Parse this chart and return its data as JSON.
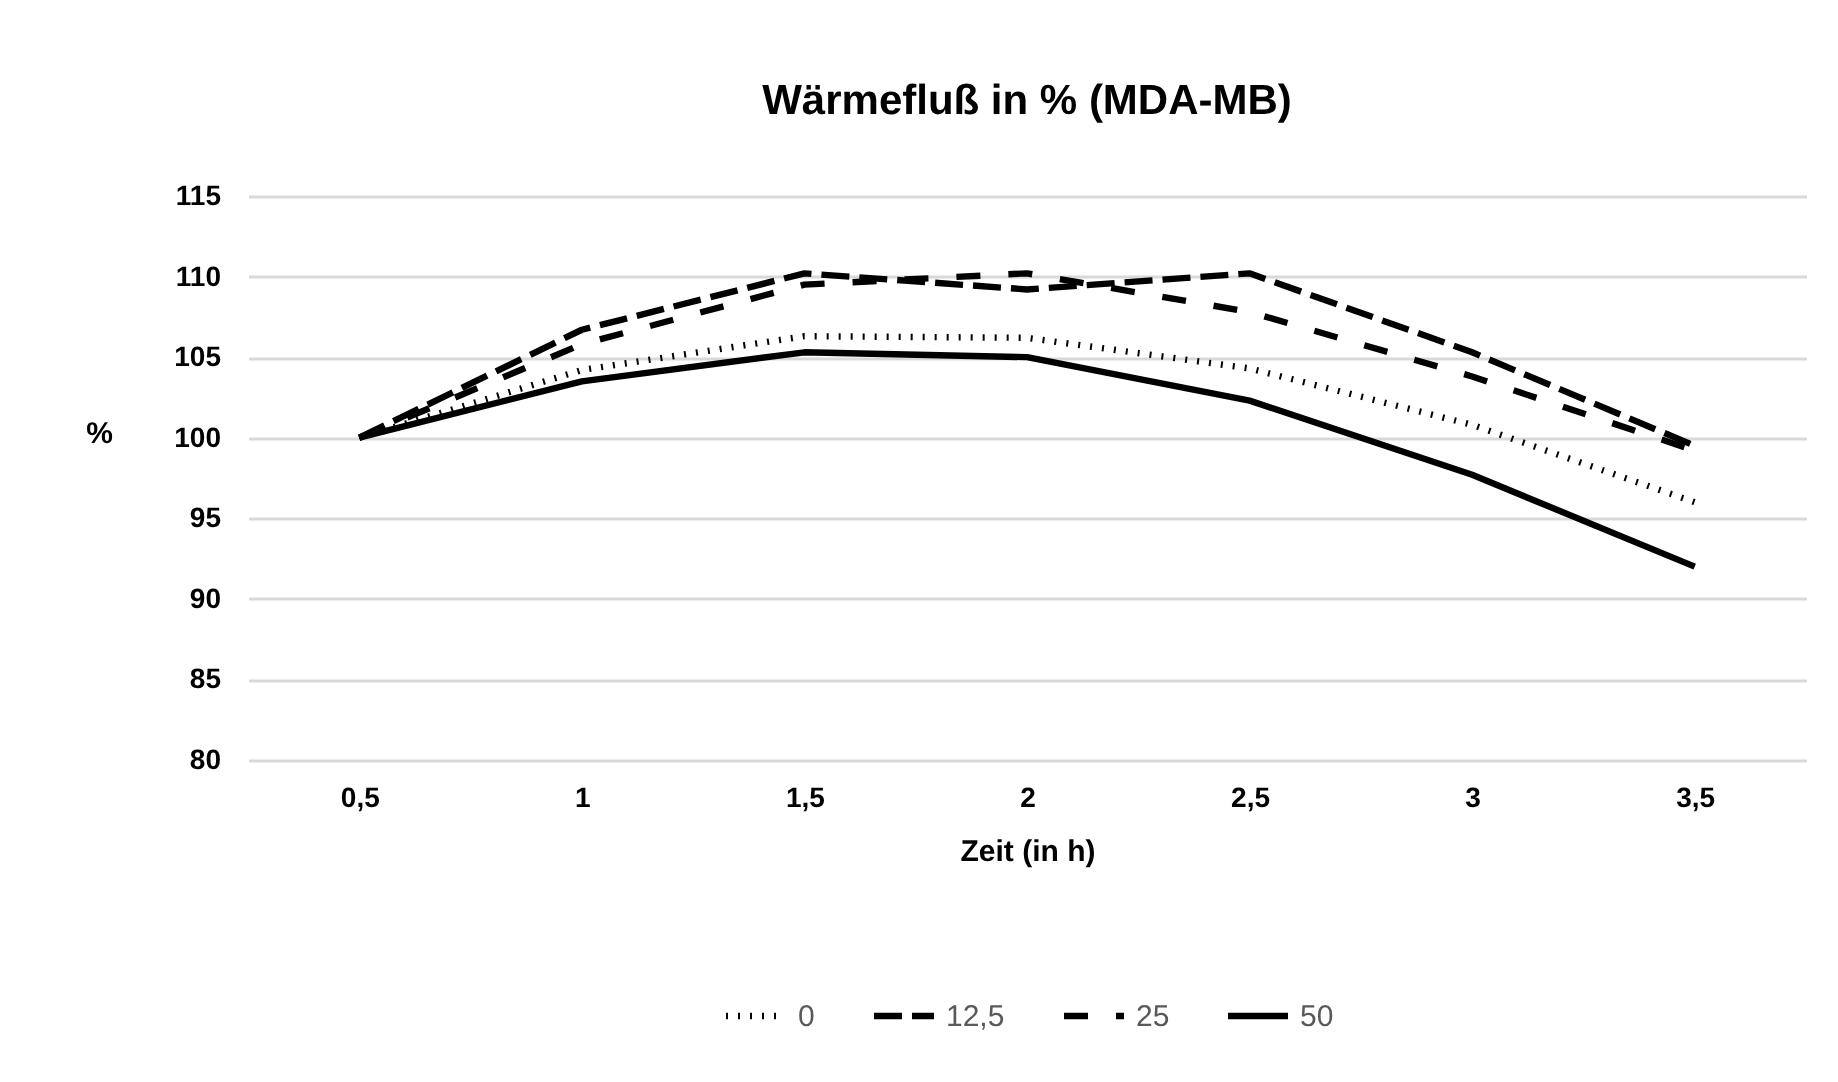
{
  "chart_data": {
    "type": "line",
    "title": "Wärmefluß in % (MDA-MB)",
    "xlabel": "Zeit (in h)",
    "ylabel": "%",
    "categories": [
      "0,5",
      "1",
      "1,5",
      "2",
      "2,5",
      "3",
      "3,5"
    ],
    "series": [
      {
        "name": "0",
        "color": "#000000",
        "line_style": "dotted",
        "values": [
          100,
          104.2,
          106.3,
          106.2,
          104.3,
          100.8,
          96
        ]
      },
      {
        "name": "12,5",
        "color": "#000000",
        "line_style": "dashed",
        "values": [
          100,
          106.7,
          110.2,
          109.2,
          110.2,
          105.3,
          99.5
        ]
      },
      {
        "name": "25",
        "color": "#000000",
        "line_style": "dashed",
        "values": [
          100,
          105.8,
          109.5,
          110.2,
          107.8,
          103.8,
          99.2
        ]
      },
      {
        "name": "50",
        "color": "#000000",
        "line_style": "solid",
        "values": [
          100,
          103.5,
          105.3,
          105,
          102.3,
          97.7,
          92
        ]
      }
    ],
    "ylim": [
      80,
      115
    ],
    "yticks": [
      80,
      85,
      90,
      95,
      100,
      105,
      110,
      115
    ],
    "grid": "y",
    "legend": "bottom",
    "marker": "none"
  }
}
